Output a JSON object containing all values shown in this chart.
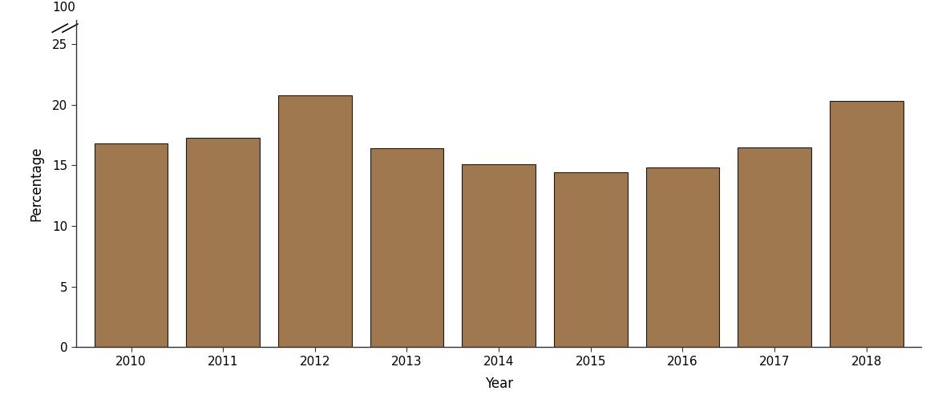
{
  "years": [
    2010,
    2011,
    2012,
    2013,
    2014,
    2015,
    2016,
    2017,
    2018
  ],
  "values": [
    16.8,
    17.3,
    20.8,
    16.4,
    15.1,
    14.4,
    14.8,
    16.5,
    20.3
  ],
  "bar_color": "#A07850",
  "bar_edgecolor": "#1a1a1a",
  "xlabel": "Year",
  "ylabel": "Percentage",
  "ylim_display": 27,
  "normal_yticks": [
    0,
    5,
    10,
    15,
    20,
    25
  ],
  "background_color": "#ffffff",
  "axis_linecolor": "#333333",
  "bar_linewidth": 0.8,
  "figsize": [
    11.85,
    4.98
  ],
  "dpi": 100
}
